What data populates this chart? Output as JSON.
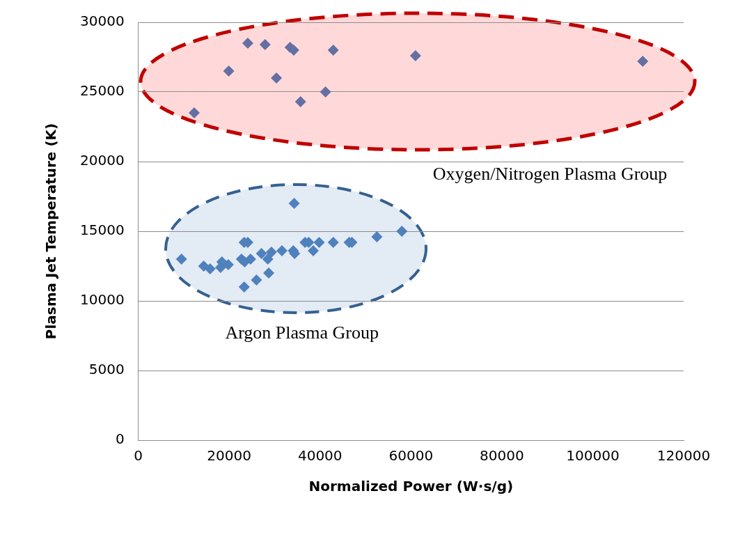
{
  "chart_data": {
    "type": "scatter",
    "xlabel": "Normalized Power (W·s/g)",
    "ylabel": "Plasma Jet Temperature (K)",
    "xlim": [
      0,
      120000
    ],
    "xticks": [
      0,
      20000,
      40000,
      60000,
      80000,
      100000,
      120000
    ],
    "ylim": [
      0,
      30000
    ],
    "yticks": [
      0,
      5000,
      10000,
      15000,
      20000,
      25000,
      30000
    ],
    "grid": "y",
    "legend": false,
    "marker": "diamond",
    "annotations": [
      "Oxygen/Nitrogen Plasma Group",
      "Argon Plasma Group"
    ],
    "series": [
      {
        "color": "#6470a4",
        "x": [
          24100,
          27900,
          33400,
          34200,
          42900,
          61000,
          19900,
          30400,
          41200,
          35700,
          12300,
          111000
        ],
        "values": [
          28500,
          28400,
          28200,
          28000,
          28000,
          27600,
          26500,
          26000,
          25000,
          24300,
          23500,
          27200
        ]
      },
      {
        "color": "#4f81bd",
        "x": [
          34300,
          58000,
          52500,
          23300,
          24100,
          36700,
          37500,
          39800,
          42900,
          46400,
          47000,
          38500,
          34400,
          34100,
          31600,
          29300,
          27100,
          28500,
          22700,
          24700,
          23400,
          9500,
          14400,
          15800,
          18400,
          19800,
          18100,
          28700,
          26000,
          23300
        ],
        "values": [
          17000,
          15000,
          14600,
          14200,
          14200,
          14200,
          14200,
          14200,
          14200,
          14200,
          14200,
          13600,
          13400,
          13600,
          13600,
          13500,
          13400,
          13000,
          13000,
          13000,
          12800,
          13000,
          12500,
          12300,
          12800,
          12600,
          12400,
          12000,
          11500,
          11000
        ]
      }
    ]
  }
}
